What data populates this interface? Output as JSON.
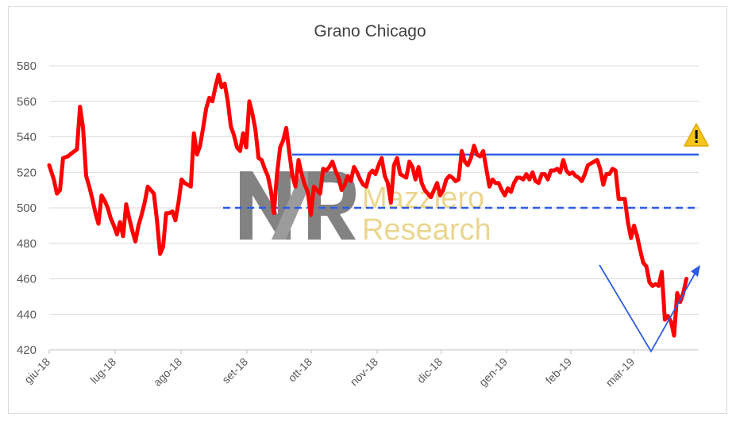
{
  "chart_data": {
    "type": "line",
    "title": "Grano Chicago",
    "xlabel": "",
    "ylabel": "",
    "ylim": [
      420,
      580
    ],
    "y_ticks": [
      420,
      440,
      460,
      480,
      500,
      520,
      540,
      560,
      580
    ],
    "grid": true,
    "x_tick_labels": [
      "giu-18",
      "lug-18",
      "ago-18",
      "set-18",
      "ott-18",
      "nov-18",
      "dic-18",
      "gen-19",
      "feb-19",
      "mar-19"
    ],
    "series": [
      {
        "color": "#ff0000",
        "points": [
          [
            0.0,
            524
          ],
          [
            0.3,
            516
          ],
          [
            0.5,
            508
          ],
          [
            0.7,
            510
          ],
          [
            0.9,
            528
          ],
          [
            1.2,
            529
          ],
          [
            1.5,
            531
          ],
          [
            1.8,
            533
          ],
          [
            2.0,
            557
          ],
          [
            2.2,
            545
          ],
          [
            2.4,
            518
          ],
          [
            2.6,
            512
          ],
          [
            2.8,
            505
          ],
          [
            3.0,
            497
          ],
          [
            3.2,
            491
          ],
          [
            3.4,
            507
          ],
          [
            3.6,
            504
          ],
          [
            3.8,
            500
          ],
          [
            4.0,
            494
          ],
          [
            4.2,
            490
          ],
          [
            4.4,
            485
          ],
          [
            4.6,
            492
          ],
          [
            4.8,
            484
          ],
          [
            5.0,
            502
          ],
          [
            5.2,
            494
          ],
          [
            5.4,
            487
          ],
          [
            5.6,
            481
          ],
          [
            5.8,
            490
          ],
          [
            6.0,
            496
          ],
          [
            6.2,
            503
          ],
          [
            6.4,
            512
          ],
          [
            6.6,
            510
          ],
          [
            6.8,
            508
          ],
          [
            7.0,
            493
          ],
          [
            7.2,
            474
          ],
          [
            7.4,
            478
          ],
          [
            7.6,
            497
          ],
          [
            7.8,
            497
          ],
          [
            8.0,
            498
          ],
          [
            8.2,
            493
          ],
          [
            8.4,
            503
          ],
          [
            8.6,
            516
          ],
          [
            8.8,
            514
          ],
          [
            9.0,
            513
          ],
          [
            9.2,
            512
          ],
          [
            9.4,
            542
          ],
          [
            9.6,
            530
          ],
          [
            9.8,
            535
          ],
          [
            10.0,
            545
          ],
          [
            10.2,
            556
          ],
          [
            10.4,
            562
          ],
          [
            10.6,
            560
          ],
          [
            10.8,
            568
          ],
          [
            11.0,
            575
          ],
          [
            11.2,
            568
          ],
          [
            11.4,
            570
          ],
          [
            11.6,
            560
          ],
          [
            11.8,
            546
          ],
          [
            12.0,
            541
          ],
          [
            12.2,
            534
          ],
          [
            12.4,
            532
          ],
          [
            12.6,
            542
          ],
          [
            12.8,
            534
          ],
          [
            13.0,
            560
          ],
          [
            13.2,
            553
          ],
          [
            13.4,
            544
          ],
          [
            13.6,
            528
          ],
          [
            13.8,
            527
          ],
          [
            14.0,
            522
          ],
          [
            14.2,
            518
          ],
          [
            14.4,
            510
          ],
          [
            14.6,
            497
          ],
          [
            14.8,
            519
          ],
          [
            15.0,
            534
          ],
          [
            15.2,
            538
          ],
          [
            15.4,
            545
          ],
          [
            15.6,
            531
          ],
          [
            15.8,
            518
          ],
          [
            16.0,
            512
          ],
          [
            16.2,
            527
          ],
          [
            16.4,
            519
          ],
          [
            16.6,
            513
          ],
          [
            16.8,
            509
          ],
          [
            17.0,
            496
          ],
          [
            17.2,
            512
          ],
          [
            17.4,
            510
          ],
          [
            17.6,
            508
          ],
          [
            17.8,
            522
          ],
          [
            18.0,
            521
          ],
          [
            18.2,
            523
          ],
          [
            18.4,
            526
          ],
          [
            18.6,
            521
          ],
          [
            18.8,
            517
          ],
          [
            19.0,
            510
          ],
          [
            19.2,
            513
          ],
          [
            19.4,
            518
          ],
          [
            19.6,
            515
          ],
          [
            19.8,
            523
          ],
          [
            20.0,
            520
          ],
          [
            20.2,
            516
          ],
          [
            20.4,
            513
          ],
          [
            20.6,
            512
          ],
          [
            20.8,
            519
          ],
          [
            21.0,
            521
          ],
          [
            21.2,
            519
          ],
          [
            21.4,
            524
          ],
          [
            21.6,
            528
          ],
          [
            21.8,
            518
          ],
          [
            22.0,
            514
          ],
          [
            22.2,
            503
          ],
          [
            22.4,
            524
          ],
          [
            22.6,
            528
          ],
          [
            22.8,
            519
          ],
          [
            23.0,
            518
          ],
          [
            23.2,
            517
          ],
          [
            23.4,
            526
          ],
          [
            23.6,
            523
          ],
          [
            23.8,
            516
          ],
          [
            24.0,
            523
          ],
          [
            24.2,
            514
          ],
          [
            24.4,
            510
          ],
          [
            24.6,
            508
          ],
          [
            24.8,
            506
          ],
          [
            25.0,
            510
          ],
          [
            25.2,
            514
          ],
          [
            25.4,
            507
          ],
          [
            25.6,
            510
          ],
          [
            25.8,
            516
          ],
          [
            26.0,
            518
          ],
          [
            26.2,
            517
          ],
          [
            26.4,
            515
          ],
          [
            26.6,
            516
          ],
          [
            26.8,
            532
          ],
          [
            27.0,
            526
          ],
          [
            27.2,
            524
          ],
          [
            27.4,
            528
          ],
          [
            27.6,
            535
          ],
          [
            27.8,
            530
          ],
          [
            28.0,
            529
          ],
          [
            28.2,
            532
          ],
          [
            28.4,
            522
          ],
          [
            28.6,
            512
          ],
          [
            28.8,
            516
          ],
          [
            29.0,
            514
          ],
          [
            29.2,
            514
          ],
          [
            29.4,
            510
          ],
          [
            29.6,
            507
          ],
          [
            29.8,
            511
          ],
          [
            30.0,
            509
          ],
          [
            30.2,
            514
          ],
          [
            30.4,
            517
          ],
          [
            30.6,
            517
          ],
          [
            30.8,
            516
          ],
          [
            31.0,
            519
          ],
          [
            31.2,
            516
          ],
          [
            31.4,
            520
          ],
          [
            31.6,
            515
          ],
          [
            31.8,
            514
          ],
          [
            32.0,
            519
          ],
          [
            32.2,
            519
          ],
          [
            32.4,
            516
          ],
          [
            32.6,
            521
          ],
          [
            32.8,
            521
          ],
          [
            33.0,
            522
          ],
          [
            33.2,
            520
          ],
          [
            33.4,
            527
          ],
          [
            33.6,
            521
          ],
          [
            33.8,
            519
          ],
          [
            34.0,
            520
          ],
          [
            34.2,
            518
          ],
          [
            34.4,
            517
          ],
          [
            34.6,
            515
          ],
          [
            34.8,
            519
          ],
          [
            35.0,
            524
          ],
          [
            35.2,
            525
          ],
          [
            35.4,
            526
          ],
          [
            35.6,
            527
          ],
          [
            35.8,
            522
          ],
          [
            36.0,
            513
          ],
          [
            36.2,
            519
          ],
          [
            36.4,
            519
          ],
          [
            36.6,
            522
          ],
          [
            36.8,
            521
          ],
          [
            37.0,
            505
          ],
          [
            37.2,
            505
          ],
          [
            37.4,
            505
          ],
          [
            37.6,
            492
          ],
          [
            37.8,
            483
          ],
          [
            38.0,
            490
          ],
          [
            38.2,
            484
          ],
          [
            38.4,
            476
          ],
          [
            38.6,
            469
          ],
          [
            38.8,
            467
          ],
          [
            39.0,
            458
          ],
          [
            39.2,
            456
          ],
          [
            39.4,
            457
          ],
          [
            39.6,
            456
          ],
          [
            39.8,
            464
          ],
          [
            40.0,
            437
          ],
          [
            40.2,
            439
          ],
          [
            40.4,
            436
          ],
          [
            40.6,
            428
          ],
          [
            40.8,
            452
          ],
          [
            41.0,
            447
          ],
          [
            41.2,
            452
          ],
          [
            41.4,
            460
          ]
        ]
      }
    ],
    "annotations": {
      "resistance_line": 530,
      "support_line": 500,
      "watermark_logo": "MR",
      "watermark_line1": "Mazziero",
      "watermark_line2": "Research",
      "warning_icon": "warning-icon",
      "v_pattern_color": "#2e5be6"
    }
  }
}
